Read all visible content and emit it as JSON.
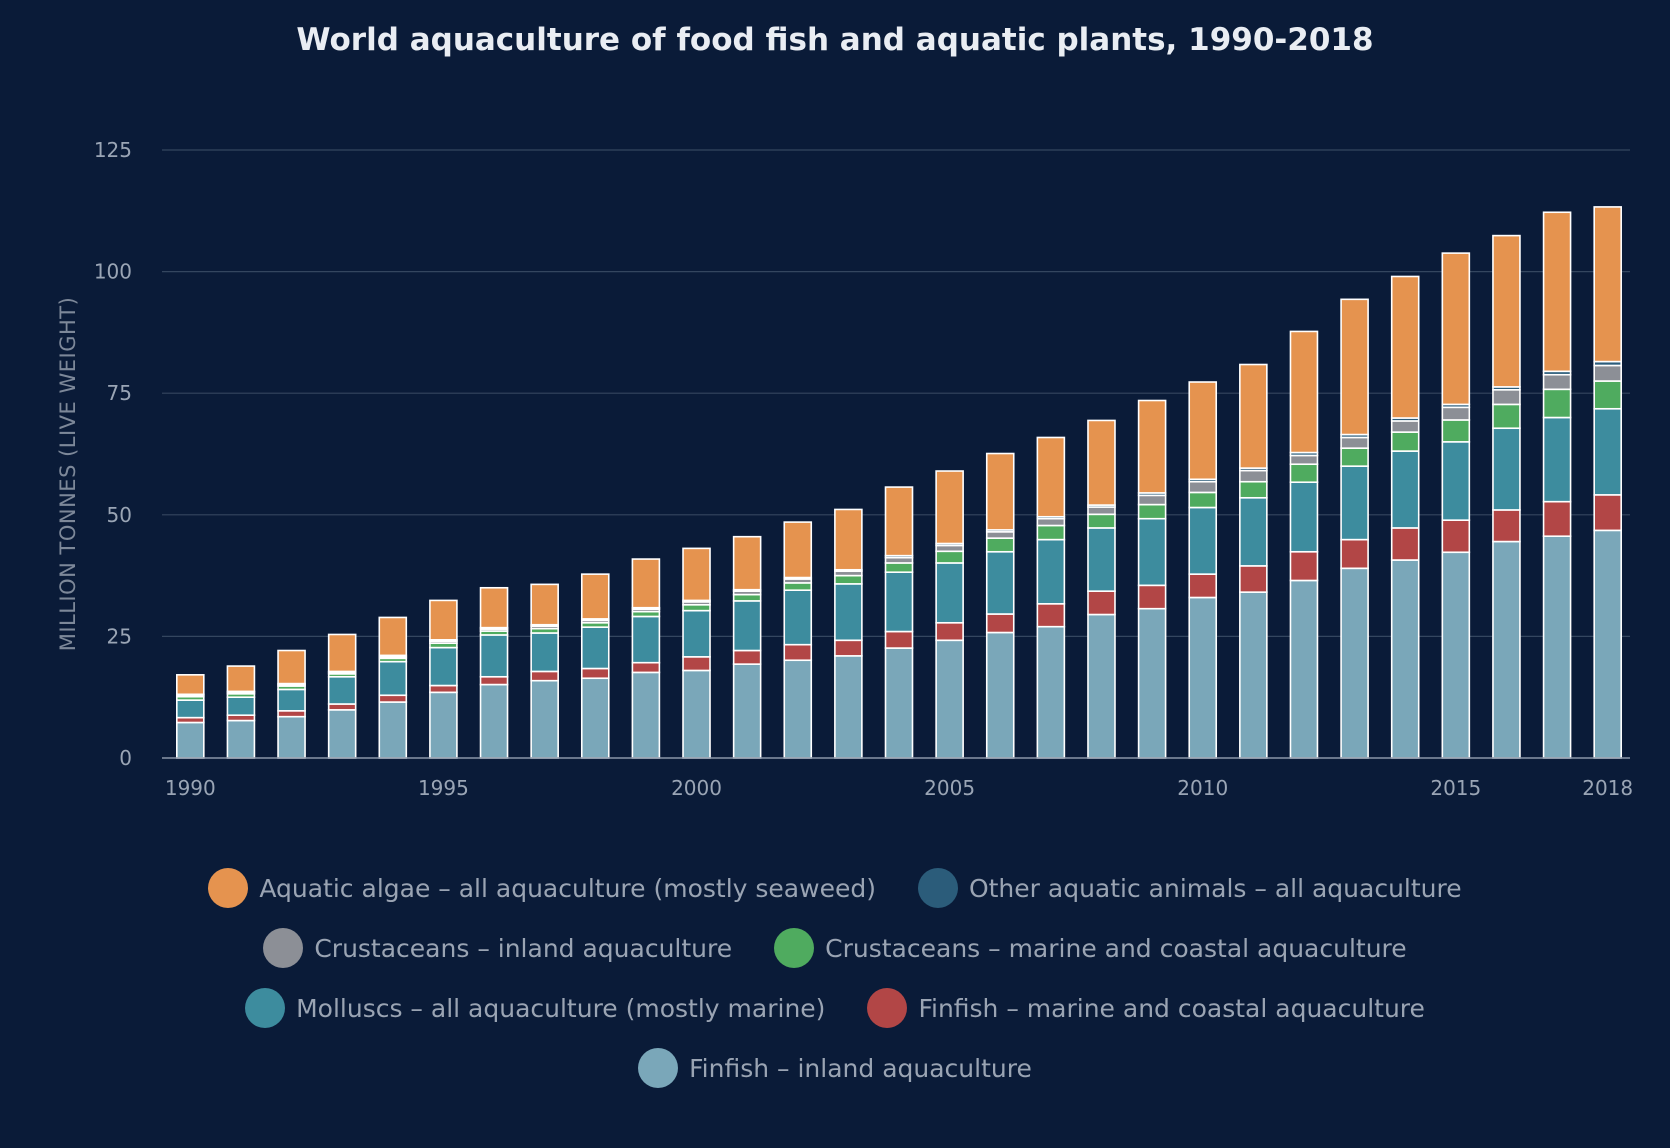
{
  "chart_data": {
    "type": "bar",
    "stacked": true,
    "title": "World aquaculture of food fish and aquatic plants, 1990-2018",
    "xlabel": "",
    "ylabel": "MILLION TONNES (LIVE WEIGHT)",
    "ylim": [
      0,
      125
    ],
    "yticks": [
      0,
      25,
      50,
      75,
      100,
      125
    ],
    "xtick_labels": [
      "1990",
      "1995",
      "2000",
      "2005",
      "2010",
      "2015",
      "2018"
    ],
    "grid": true,
    "legend_position": "bottom",
    "categories": [
      "1990",
      "1991",
      "1992",
      "1993",
      "1994",
      "1995",
      "1996",
      "1997",
      "1998",
      "1999",
      "2000",
      "2001",
      "2002",
      "2003",
      "2004",
      "2005",
      "2006",
      "2007",
      "2008",
      "2009",
      "2010",
      "2011",
      "2012",
      "2013",
      "2014",
      "2015",
      "2016",
      "2017",
      "2018"
    ],
    "series": [
      {
        "name": "Finfish – inland aquaculture",
        "color": "#7aa7b9",
        "values": [
          7.3,
          7.7,
          8.5,
          9.9,
          11.5,
          13.5,
          15.1,
          15.9,
          16.4,
          17.6,
          18.0,
          19.3,
          20.1,
          21.0,
          22.6,
          24.2,
          25.8,
          27.0,
          29.5,
          30.7,
          33.0,
          34.1,
          36.5,
          39.0,
          40.7,
          42.3,
          44.5,
          45.6,
          46.8
        ]
      },
      {
        "name": "Finfish – marine and coastal aquaculture",
        "color": "#b24646",
        "values": [
          1.0,
          1.1,
          1.2,
          1.2,
          1.4,
          1.4,
          1.6,
          1.9,
          2.0,
          2.0,
          2.8,
          2.8,
          3.2,
          3.2,
          3.4,
          3.6,
          3.8,
          4.7,
          4.8,
          4.8,
          4.8,
          5.4,
          5.9,
          5.9,
          6.6,
          6.6,
          6.5,
          7.1,
          7.3
        ]
      },
      {
        "name": "Molluscs – all aquaculture (mostly marine)",
        "color": "#3d8c9e",
        "values": [
          3.6,
          3.7,
          4.4,
          5.6,
          6.9,
          7.8,
          8.6,
          7.9,
          8.5,
          9.5,
          9.5,
          10.2,
          11.2,
          11.6,
          12.2,
          12.3,
          12.8,
          13.2,
          13.0,
          13.7,
          13.7,
          14.0,
          14.3,
          15.1,
          15.8,
          16.1,
          16.8,
          17.3,
          17.7
        ]
      },
      {
        "name": "Crustaceans – marine and coastal aquaculture",
        "color": "#4fab5f",
        "values": [
          0.7,
          0.7,
          0.7,
          0.6,
          0.7,
          0.9,
          0.8,
          0.9,
          0.9,
          1.0,
          1.2,
          1.3,
          1.5,
          1.7,
          1.9,
          2.4,
          2.8,
          2.9,
          2.8,
          2.9,
          3.1,
          3.3,
          3.7,
          3.7,
          3.9,
          4.5,
          4.9,
          5.8,
          5.7
        ]
      },
      {
        "name": "Crustaceans – inland aquaculture",
        "color": "#8c8f96",
        "values": [
          0.3,
          0.3,
          0.3,
          0.3,
          0.3,
          0.4,
          0.4,
          0.5,
          0.5,
          0.5,
          0.6,
          0.7,
          0.8,
          0.9,
          1.1,
          1.2,
          1.3,
          1.4,
          1.5,
          1.9,
          2.2,
          2.3,
          1.8,
          2.2,
          2.3,
          2.6,
          3.0,
          3.0,
          3.2
        ]
      },
      {
        "name": "Other aquatic animals – all aquaculture",
        "color": "#2b5c7a",
        "values": [
          0.2,
          0.2,
          0.2,
          0.2,
          0.3,
          0.3,
          0.3,
          0.3,
          0.3,
          0.3,
          0.3,
          0.3,
          0.3,
          0.3,
          0.4,
          0.4,
          0.4,
          0.4,
          0.4,
          0.5,
          0.5,
          0.5,
          0.6,
          0.6,
          0.6,
          0.6,
          0.6,
          0.7,
          0.8
        ]
      },
      {
        "name": "Aquatic algae – all aquaculture (mostly seaweed)",
        "color": "#e5934f",
        "values": [
          4.0,
          5.2,
          6.8,
          7.6,
          7.8,
          8.1,
          8.2,
          8.3,
          9.2,
          10.0,
          10.7,
          10.9,
          11.4,
          12.4,
          14.1,
          14.9,
          15.7,
          16.3,
          17.4,
          19.0,
          20.0,
          21.3,
          24.9,
          27.8,
          29.1,
          31.1,
          31.1,
          32.7,
          31.8
        ]
      }
    ]
  },
  "legend_rows": [
    [
      6,
      5
    ],
    [
      4,
      3
    ],
    [
      2,
      1
    ],
    [
      0
    ]
  ]
}
